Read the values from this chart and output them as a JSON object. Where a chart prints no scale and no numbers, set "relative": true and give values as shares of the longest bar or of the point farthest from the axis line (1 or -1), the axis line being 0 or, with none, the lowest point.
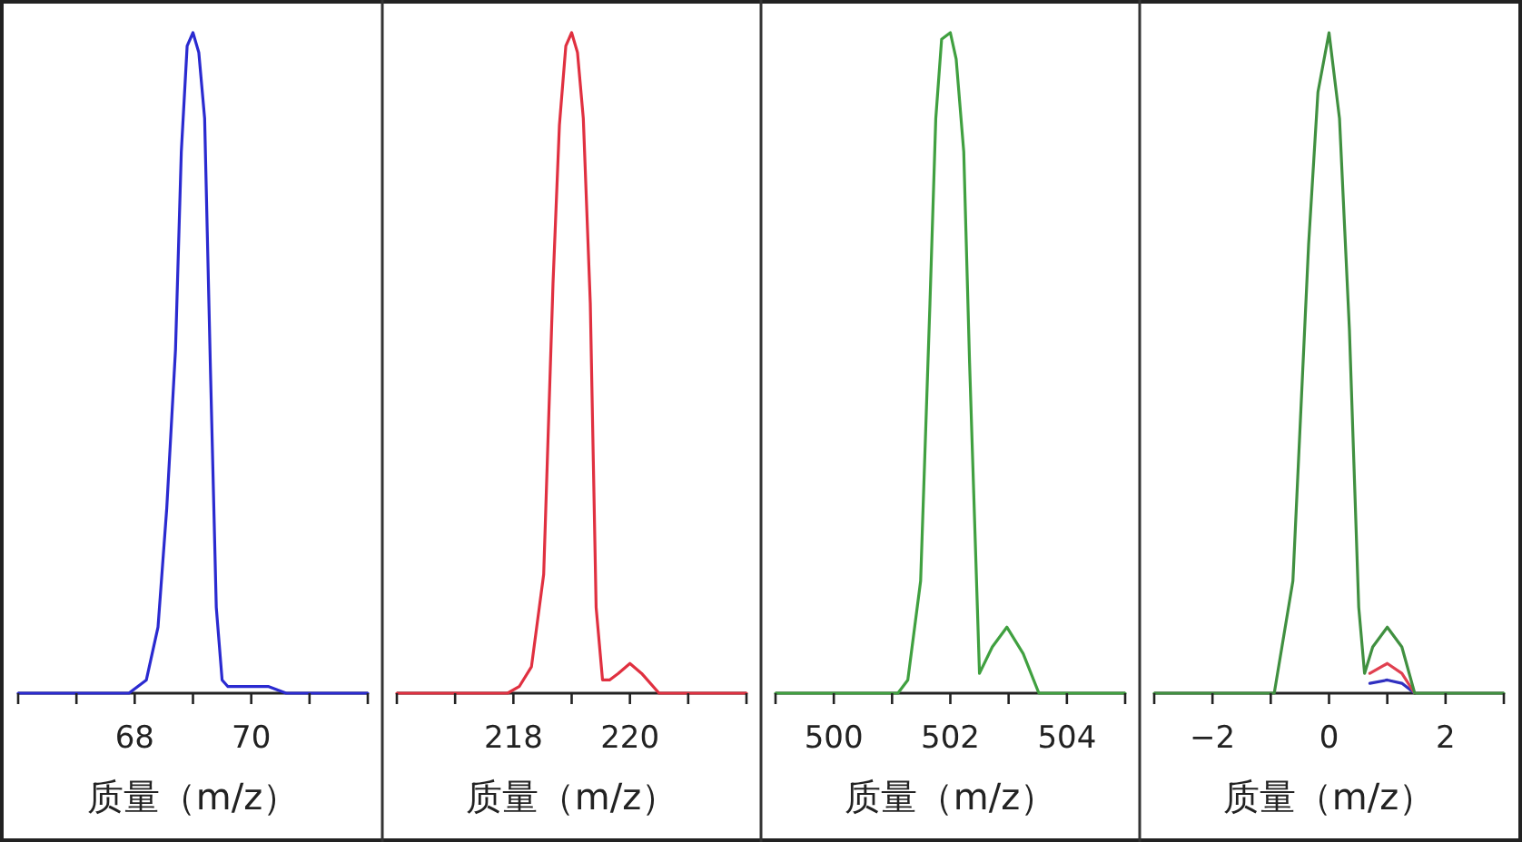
{
  "chart_data": [
    {
      "type": "line",
      "relative": true,
      "xlabel": "质量（m/z）",
      "xlim": [
        66,
        72
      ],
      "xticks": [
        {
          "value": 66,
          "label": null
        },
        {
          "value": 67,
          "label": null
        },
        68,
        {
          "value": 69,
          "label": null
        },
        70,
        {
          "value": 71,
          "label": null
        },
        {
          "value": 72,
          "label": null
        }
      ],
      "series": [
        {
          "color": "#2a2ad0",
          "x": [
            66,
            67.9,
            68.2,
            68.4,
            68.55,
            68.7,
            68.8,
            68.9,
            69.0,
            69.1,
            69.2,
            69.3,
            69.4,
            69.5,
            69.6,
            69.8,
            70.3,
            70.6,
            72
          ],
          "values": [
            0,
            0,
            0.02,
            0.1,
            0.28,
            0.52,
            0.82,
            0.98,
            1,
            0.97,
            0.87,
            0.49,
            0.13,
            0.02,
            0.01,
            0.01,
            0.01,
            0,
            0
          ]
        }
      ]
    },
    {
      "type": "line",
      "relative": true,
      "xlabel": "质量（m/z）",
      "xlim": [
        216,
        222
      ],
      "xticks": [
        {
          "value": 216,
          "label": null
        },
        {
          "value": 217,
          "label": null
        },
        218,
        {
          "value": 219,
          "label": null
        },
        220,
        {
          "value": 221,
          "label": null
        },
        {
          "value": 222,
          "label": null
        }
      ],
      "series": [
        {
          "color": "#e03040",
          "x": [
            216,
            217.9,
            218.1,
            218.31,
            218.52,
            218.68,
            218.79,
            218.9,
            219.0,
            219.1,
            219.2,
            219.32,
            219.42,
            219.53,
            219.65,
            219.8,
            220.0,
            220.2,
            220.5,
            222
          ],
          "values": [
            0,
            0,
            0.01,
            0.04,
            0.18,
            0.62,
            0.86,
            0.98,
            1,
            0.97,
            0.87,
            0.59,
            0.13,
            0.02,
            0.02,
            0.03,
            0.045,
            0.03,
            0,
            0
          ]
        }
      ]
    },
    {
      "type": "line",
      "relative": true,
      "xlabel": "质量（m/z）",
      "xlim": [
        499,
        505
      ],
      "xticks": [
        {
          "value": 499,
          "label": null
        },
        500,
        {
          "value": 501,
          "label": null
        },
        502,
        {
          "value": 503,
          "label": null
        },
        504,
        {
          "value": 505,
          "label": null
        }
      ],
      "series": [
        {
          "color": "#40a040",
          "x": [
            499,
            501.1,
            501.27,
            501.49,
            501.65,
            501.75,
            501.85,
            502.0,
            502.1,
            502.23,
            502.33,
            502.5,
            502.72,
            502.97,
            503.25,
            503.52,
            505
          ],
          "values": [
            0,
            0,
            0.02,
            0.17,
            0.59,
            0.87,
            0.99,
            1,
            0.96,
            0.82,
            0.5,
            0.03,
            0.07,
            0.1,
            0.06,
            0,
            0
          ]
        }
      ]
    },
    {
      "type": "line",
      "relative": true,
      "xlabel": "质量（m/z）",
      "xlim": [
        -3,
        3
      ],
      "xticks": [
        {
          "value": -3,
          "label": null
        },
        -2,
        {
          "value": -1,
          "label": null
        },
        0,
        {
          "value": 1,
          "label": null
        },
        2,
        {
          "value": 3,
          "label": null
        }
      ],
      "series": [
        {
          "color": "#3030c0",
          "x": [
            0.7,
            1.0,
            1.25,
            1.47
          ],
          "values": [
            0.015,
            0.02,
            0.015,
            0
          ]
        },
        {
          "color": "#e04050",
          "x": [
            0.7,
            1.0,
            1.25,
            1.47
          ],
          "values": [
            0.03,
            0.045,
            0.03,
            0
          ]
        },
        {
          "color": "#409040",
          "x": [
            -3,
            -0.94,
            -0.62,
            -0.35,
            -0.19,
            0,
            0.18,
            0.35,
            0.51,
            0.61,
            0.75,
            1.0,
            1.25,
            1.47,
            3
          ],
          "values": [
            0,
            0,
            0.17,
            0.68,
            0.91,
            1,
            0.87,
            0.55,
            0.13,
            0.03,
            0.07,
            0.1,
            0.07,
            0,
            0
          ]
        }
      ]
    }
  ]
}
